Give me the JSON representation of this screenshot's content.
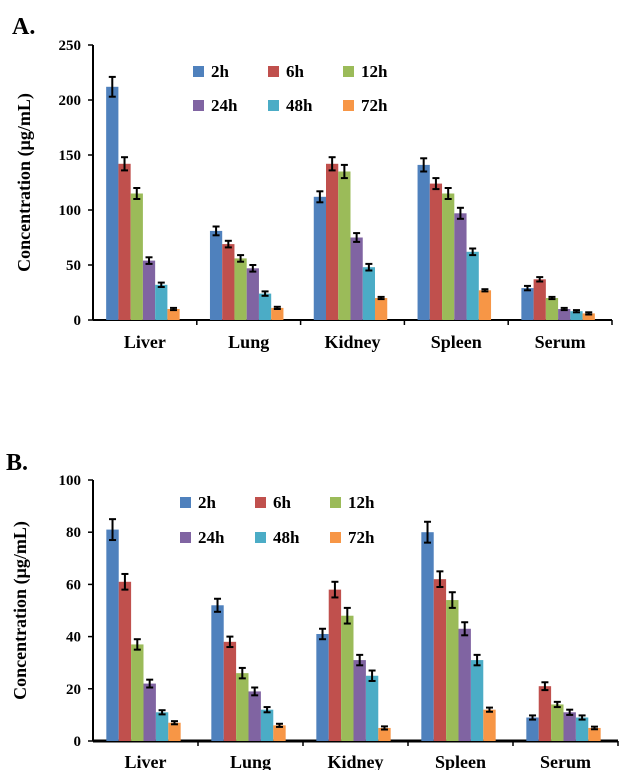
{
  "chart_data": [
    {
      "type": "bar",
      "panel_label": "A.",
      "ylabel": "Concentration (µg/mL)",
      "ylim": [
        0,
        250
      ],
      "yticks": [
        0,
        50,
        100,
        150,
        200,
        250
      ],
      "categories": [
        "Liver",
        "Lung",
        "Kidney",
        "Spleen",
        "Serum"
      ],
      "legend_position": "top-center",
      "series": [
        {
          "name": "2h",
          "color": "#4F81BD",
          "values": [
            212,
            81,
            112,
            141,
            29
          ],
          "errors": [
            9,
            4,
            5,
            6,
            2
          ]
        },
        {
          "name": "6h",
          "color": "#C0504D",
          "values": [
            142,
            69,
            142,
            124,
            37
          ],
          "errors": [
            6,
            3,
            6,
            5,
            2
          ]
        },
        {
          "name": "12h",
          "color": "#9BBB59",
          "values": [
            115,
            56,
            135,
            115,
            20
          ],
          "errors": [
            5,
            3,
            6,
            5,
            1
          ]
        },
        {
          "name": "24h",
          "color": "#8064A2",
          "values": [
            54,
            47,
            75,
            97,
            10
          ],
          "errors": [
            3,
            3,
            4,
            5,
            1
          ]
        },
        {
          "name": "48h",
          "color": "#4BACC6",
          "values": [
            32,
            24,
            48,
            62,
            8
          ],
          "errors": [
            2,
            2,
            3,
            3,
            1
          ]
        },
        {
          "name": "72h",
          "color": "#F79646",
          "values": [
            10,
            11,
            20,
            27,
            6
          ],
          "errors": [
            1,
            1,
            1,
            1,
            1
          ]
        }
      ]
    },
    {
      "type": "bar",
      "panel_label": "B.",
      "ylabel": "Concentration (µg/mL)",
      "ylim": [
        0,
        100
      ],
      "yticks": [
        0,
        20,
        40,
        60,
        80,
        100
      ],
      "categories": [
        "Liver",
        "Lung",
        "Kidney",
        "Spleen",
        "Serum"
      ],
      "legend_position": "top-center",
      "series": [
        {
          "name": "2h",
          "color": "#4F81BD",
          "values": [
            81,
            52,
            41,
            80,
            9
          ],
          "errors": [
            4,
            2.5,
            2,
            4,
            0.8
          ]
        },
        {
          "name": "6h",
          "color": "#C0504D",
          "values": [
            61,
            38,
            58,
            62,
            21
          ],
          "errors": [
            3,
            2,
            3,
            3,
            1.5
          ]
        },
        {
          "name": "12h",
          "color": "#9BBB59",
          "values": [
            37,
            26,
            48,
            54,
            14
          ],
          "errors": [
            2,
            2,
            3,
            3,
            1
          ]
        },
        {
          "name": "24h",
          "color": "#8064A2",
          "values": [
            22,
            19,
            31,
            43,
            11
          ],
          "errors": [
            1.5,
            1.5,
            2,
            2.5,
            1
          ]
        },
        {
          "name": "48h",
          "color": "#4BACC6",
          "values": [
            11,
            12,
            25,
            31,
            9
          ],
          "errors": [
            0.8,
            1,
            2,
            2,
            0.8
          ]
        },
        {
          "name": "72h",
          "color": "#F79646",
          "values": [
            7,
            6,
            5,
            12,
            5
          ],
          "errors": [
            0.6,
            0.6,
            0.6,
            0.8,
            0.5
          ]
        }
      ]
    }
  ]
}
